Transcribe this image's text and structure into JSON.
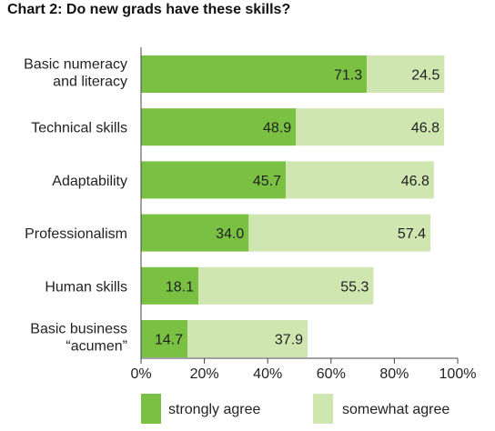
{
  "chart_title": "Chart 2: Do new grads have these skills?",
  "colors": {
    "strongly_agree": "#7ac143",
    "somewhat_agree": "#cfe6b1",
    "axis": "#444444",
    "text": "#222222"
  },
  "chart_data": {
    "type": "bar",
    "orientation": "horizontal",
    "stacked": true,
    "title": "Chart 2: Do new grads have these skills?",
    "categories": [
      [
        "Basic numeracy",
        "and literacy"
      ],
      [
        "Technical skills"
      ],
      [
        "Adaptability"
      ],
      [
        "Professionalism"
      ],
      [
        "Human skills"
      ],
      [
        "Basic business",
        "“acumen”"
      ]
    ],
    "series": [
      {
        "name": "strongly agree",
        "values": [
          71.3,
          48.9,
          45.7,
          34.0,
          18.1,
          14.7
        ]
      },
      {
        "name": "somewhat agree",
        "values": [
          24.5,
          46.8,
          46.8,
          57.4,
          55.3,
          37.9
        ]
      }
    ],
    "value_labels": [
      [
        "71.3",
        "48.9",
        "45.7",
        "34.0",
        "18.1",
        "14.7"
      ],
      [
        "24.5",
        "46.8",
        "46.8",
        "57.4",
        "55.3",
        "37.9"
      ]
    ],
    "xlim": [
      0,
      100
    ],
    "x_ticks": [
      "0%",
      "20%",
      "40%",
      "60%",
      "80%",
      "100%"
    ],
    "x_tick_values": [
      0,
      20,
      40,
      60,
      80,
      100
    ],
    "grid": false,
    "legend": "bottom"
  }
}
